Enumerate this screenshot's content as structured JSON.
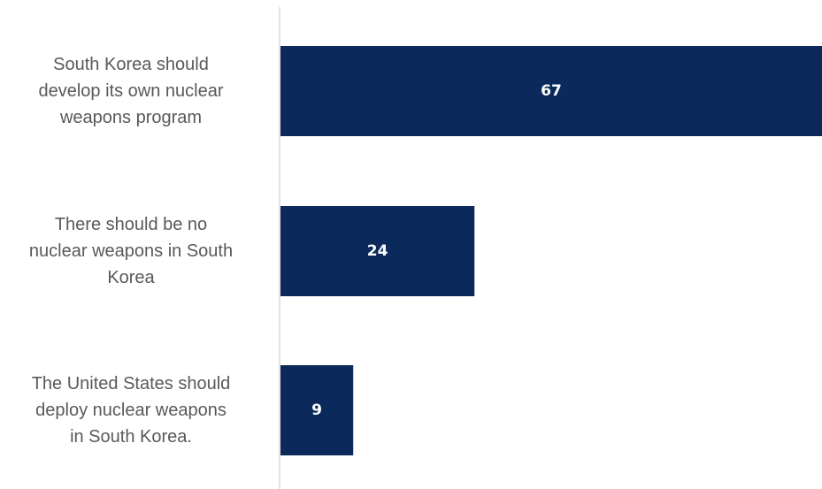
{
  "chart_data": {
    "type": "bar",
    "orientation": "horizontal",
    "categories": [
      [
        "South Korea should",
        "develop its own nuclear",
        "weapons program"
      ],
      [
        "There should be no",
        "nuclear weapons in South",
        "Korea"
      ],
      [
        "The United States should",
        "deploy nuclear weapons",
        "in South Korea."
      ]
    ],
    "values": [
      67,
      24,
      9
    ],
    "xlim": [
      0,
      67
    ],
    "bar_color": "#0b2a5b",
    "axis_color": "#d9d9d9",
    "label_color": "#595959",
    "value_label_color": "#ffffff",
    "grid": false,
    "legend": "none"
  }
}
